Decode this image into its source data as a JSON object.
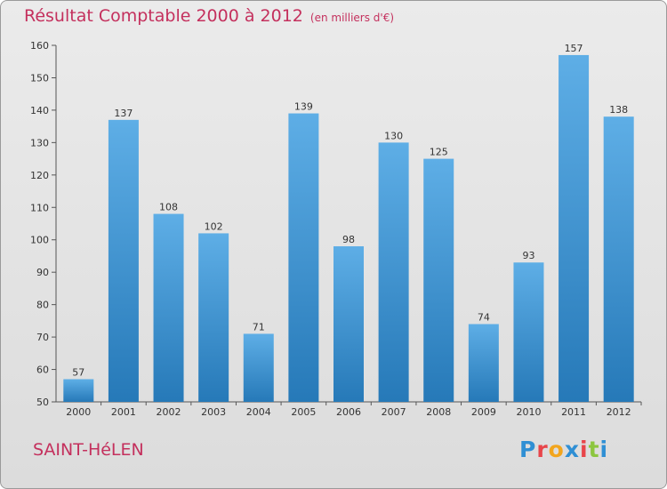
{
  "page": {
    "title": "Résultat Comptable 2000 à 2012",
    "subtitle": "(en milliers d'€)",
    "commune": "SAINT-HéLEN",
    "logo": "Proxiti"
  },
  "colors": {
    "title": "#c4305d",
    "bar_top": "#5eaee6",
    "bar_bottom": "#2679b8",
    "logo_letters": [
      "#2f8fd4",
      "#e8454a",
      "#f2a51d",
      "#2f8fd4",
      "#e8454a",
      "#8cc63f",
      "#2f8fd4"
    ]
  },
  "chart_data": {
    "type": "bar",
    "title": "Résultat Comptable 2000 à 2012",
    "subtitle": "(en milliers d'€)",
    "xlabel": "",
    "ylabel": "",
    "categories": [
      "2000",
      "2001",
      "2002",
      "2003",
      "2004",
      "2005",
      "2006",
      "2007",
      "2008",
      "2009",
      "2010",
      "2011",
      "2012"
    ],
    "values": [
      57,
      137,
      108,
      102,
      71,
      139,
      98,
      130,
      125,
      74,
      93,
      157,
      138
    ],
    "ylim": [
      50,
      160
    ],
    "yticks": [
      50,
      60,
      70,
      80,
      90,
      100,
      110,
      120,
      130,
      140,
      150,
      160
    ],
    "grid": false,
    "data_labels": true
  }
}
